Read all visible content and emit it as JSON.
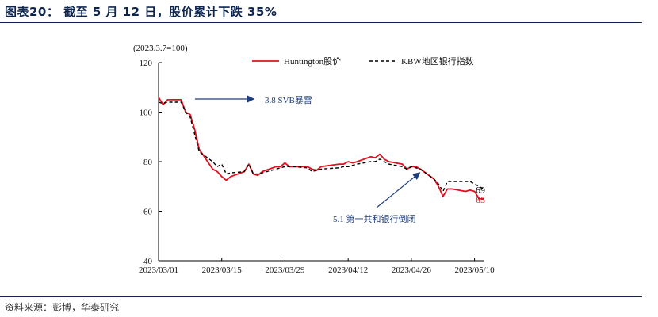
{
  "title": "图表20： 截至 5 月 12 日，股价累计下跌 35%",
  "source": "资料来源：彭博，华泰研究",
  "chart_data": {
    "type": "line",
    "base_note": "(2023.3.7=100)",
    "ylim": [
      40,
      120
    ],
    "yticks": [
      "120",
      "100",
      "80",
      "60",
      "40"
    ],
    "xticks": [
      "2023/03/01",
      "2023/03/15",
      "2023/03/29",
      "2023/04/12",
      "2023/04/26",
      "2023/05/10"
    ],
    "xlim_days": [
      0,
      72
    ],
    "series": [
      {
        "name": "Huntington股价",
        "color": "#e0101e",
        "style": "solid",
        "x": [
          "2023/03/01",
          "2023/03/02",
          "2023/03/03",
          "2023/03/06",
          "2023/03/07",
          "2023/03/08",
          "2023/03/09",
          "2023/03/10",
          "2023/03/13",
          "2023/03/14",
          "2023/03/15",
          "2023/03/16",
          "2023/03/17",
          "2023/03/20",
          "2023/03/21",
          "2023/03/22",
          "2023/03/23",
          "2023/03/24",
          "2023/03/27",
          "2023/03/28",
          "2023/03/29",
          "2023/03/30",
          "2023/03/31",
          "2023/04/03",
          "2023/04/04",
          "2023/04/05",
          "2023/04/06",
          "2023/04/10",
          "2023/04/11",
          "2023/04/12",
          "2023/04/13",
          "2023/04/14",
          "2023/04/17",
          "2023/04/18",
          "2023/04/19",
          "2023/04/20",
          "2023/04/21",
          "2023/04/24",
          "2023/04/25",
          "2023/04/26",
          "2023/04/27",
          "2023/04/28",
          "2023/05/01",
          "2023/05/02",
          "2023/05/03",
          "2023/05/04",
          "2023/05/05",
          "2023/05/08",
          "2023/05/09",
          "2023/05/10",
          "2023/05/11",
          "2023/05/12"
        ],
        "values": [
          106,
          103,
          105,
          105,
          100,
          99,
          93,
          85,
          77,
          76,
          74,
          72.5,
          74,
          76,
          79,
          75,
          74.5,
          76,
          78,
          78,
          79.5,
          78,
          78,
          78,
          77,
          76.5,
          78,
          79,
          79,
          80,
          79.5,
          80,
          82,
          81.5,
          83,
          81,
          80,
          79,
          77,
          78,
          78,
          77,
          73,
          70,
          66,
          69,
          69,
          68,
          68.5,
          68,
          65,
          65
        ]
      },
      {
        "name": "KBW地区银行指数",
        "color": "#000000",
        "style": "dashed",
        "x": [
          "2023/03/01",
          "2023/03/02",
          "2023/03/03",
          "2023/03/06",
          "2023/03/07",
          "2023/03/08",
          "2023/03/09",
          "2023/03/10",
          "2023/03/13",
          "2023/03/14",
          "2023/03/15",
          "2023/03/16",
          "2023/03/17",
          "2023/03/20",
          "2023/03/21",
          "2023/03/22",
          "2023/03/23",
          "2023/03/24",
          "2023/03/27",
          "2023/03/28",
          "2023/03/29",
          "2023/03/30",
          "2023/03/31",
          "2023/04/03",
          "2023/04/04",
          "2023/04/05",
          "2023/04/06",
          "2023/04/10",
          "2023/04/11",
          "2023/04/12",
          "2023/04/13",
          "2023/04/14",
          "2023/04/17",
          "2023/04/18",
          "2023/04/19",
          "2023/04/20",
          "2023/04/21",
          "2023/04/24",
          "2023/04/25",
          "2023/04/26",
          "2023/04/27",
          "2023/04/28",
          "2023/05/01",
          "2023/05/02",
          "2023/05/03",
          "2023/05/04",
          "2023/05/05",
          "2023/05/08",
          "2023/05/09",
          "2023/05/10",
          "2023/05/11",
          "2023/05/12"
        ],
        "values": [
          104,
          103.5,
          104,
          104,
          100,
          98,
          91,
          84,
          80,
          78,
          79,
          75,
          75.5,
          76,
          79,
          75,
          75,
          75.5,
          77,
          77.5,
          78,
          78,
          78,
          77.5,
          76,
          76.5,
          77,
          77.5,
          78,
          78,
          78.5,
          79,
          80,
          80,
          81,
          80,
          79,
          78,
          77,
          78,
          77.5,
          77,
          73,
          71,
          68,
          72,
          72,
          72,
          72,
          71,
          70,
          69
        ]
      }
    ],
    "end_labels": [
      "69",
      "65"
    ],
    "annotations": [
      {
        "text": "3.8 SVB暴雷",
        "target_date": "2023/03/08"
      },
      {
        "text": "5.1 第一共和银行倒闭",
        "target_date": "2023/05/01"
      }
    ],
    "legend_position": "top",
    "grid": false
  }
}
